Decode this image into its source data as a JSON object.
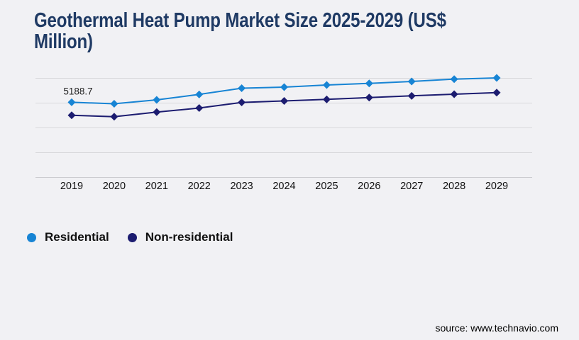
{
  "title": {
    "text": "Geothermal Heat Pump Market Size 2025-2029 (US$ Million)"
  },
  "colors": {
    "background": "#f1f1f4",
    "title": "#1f3a64",
    "gridline": "#d8d8db",
    "axis_line": "#cbcbcf",
    "residential": "#1784d4",
    "non_residential": "#1c1c70"
  },
  "chart_data": {
    "type": "line",
    "title": "Geothermal Heat Pump Market Size 2025-2029 (US$ Million)",
    "xlabel": "",
    "ylabel": "",
    "categories": [
      "2019",
      "2020",
      "2021",
      "2022",
      "2023",
      "2024",
      "2025",
      "2026",
      "2027",
      "2028",
      "2029"
    ],
    "series": [
      {
        "name": "Residential",
        "color": "#1784d4",
        "marker": "diamond",
        "values": [
          5188.7,
          5130,
          5286,
          5506,
          5757,
          5800,
          5886,
          5952,
          6029,
          6123,
          6172
        ]
      },
      {
        "name": "Non-residential",
        "color": "#1c1c70",
        "marker": "diamond",
        "values": [
          4666,
          4609,
          4792,
          4957,
          5185,
          5243,
          5306,
          5380,
          5449,
          5515,
          5578
        ]
      }
    ],
    "values_note": "Only the first Residential value (5188.7) is labeled on the chart; all other values are estimated from gridlines",
    "data_labels": [
      {
        "series": "Residential",
        "category": "2019",
        "text": "5188.7"
      }
    ],
    "ylim": [
      2158,
      6900
    ],
    "grid": "horizontal",
    "gridline_value_step": 1000,
    "legend_position": "bottom-left"
  },
  "legend": {
    "items": [
      {
        "label": "Residential",
        "color": "#1784d4"
      },
      {
        "label": "Non-residential",
        "color": "#1c1c70"
      }
    ]
  },
  "footer": {
    "source": "source: www.technavio.com"
  }
}
